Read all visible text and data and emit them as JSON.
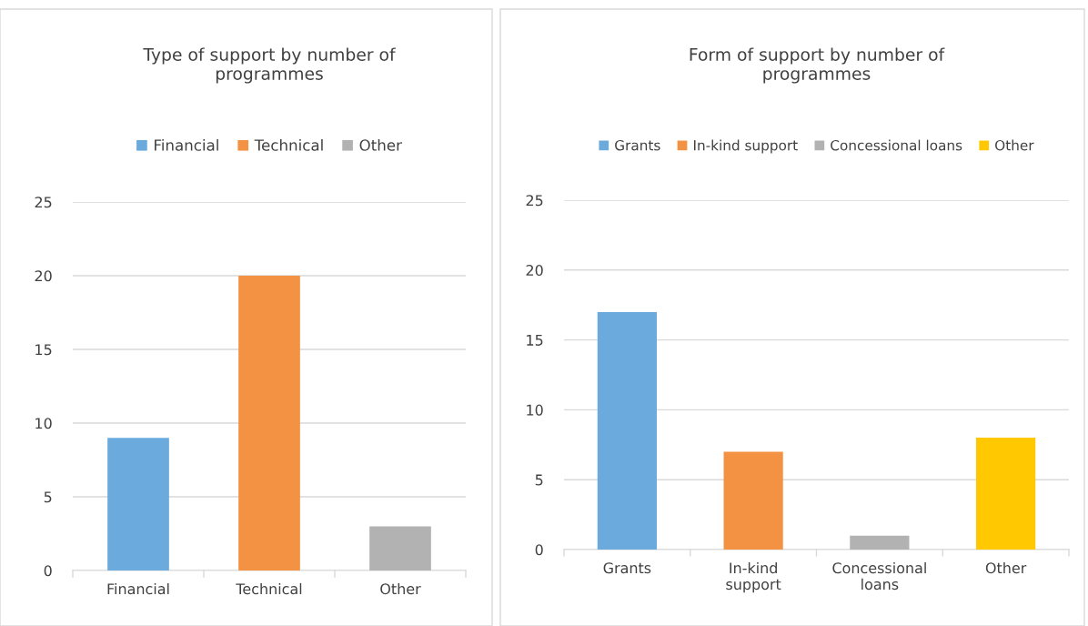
{
  "chart_data": [
    {
      "type": "bar",
      "title": "Type of support by number of\nprogrammes",
      "categories": [
        "Financial",
        "Technical",
        "Other"
      ],
      "series": [
        {
          "name": "Financial",
          "color": "#6aaadc",
          "values": [
            9,
            null,
            null
          ]
        },
        {
          "name": "Technical",
          "color": "#f39243",
          "values": [
            null,
            20,
            null
          ]
        },
        {
          "name": "Other",
          "color": "#b2b2b2",
          "values": [
            null,
            null,
            3
          ]
        }
      ],
      "ylim": [
        0,
        25
      ],
      "yticks": [
        0,
        5,
        10,
        15,
        20,
        25
      ],
      "grid": "y",
      "legend": "top"
    },
    {
      "type": "bar",
      "title": "Form of support by number of\nprogrammes",
      "categories": [
        "Grants",
        "In-kind\nsupport",
        "Concessional\nloans",
        "Other"
      ],
      "series": [
        {
          "name": "Grants",
          "color": "#6aaadc",
          "values": [
            17,
            null,
            null,
            null
          ]
        },
        {
          "name": "In-kind support",
          "color": "#f39243",
          "values": [
            null,
            7,
            null,
            null
          ]
        },
        {
          "name": "Concessional loans",
          "color": "#b2b2b2",
          "values": [
            null,
            null,
            1,
            null
          ]
        },
        {
          "name": "Other",
          "color": "#ffc800",
          "values": [
            null,
            null,
            null,
            8
          ]
        }
      ],
      "ylim": [
        0,
        25
      ],
      "yticks": [
        0,
        5,
        10,
        15,
        20,
        25
      ],
      "grid": "y",
      "legend": "top"
    }
  ]
}
